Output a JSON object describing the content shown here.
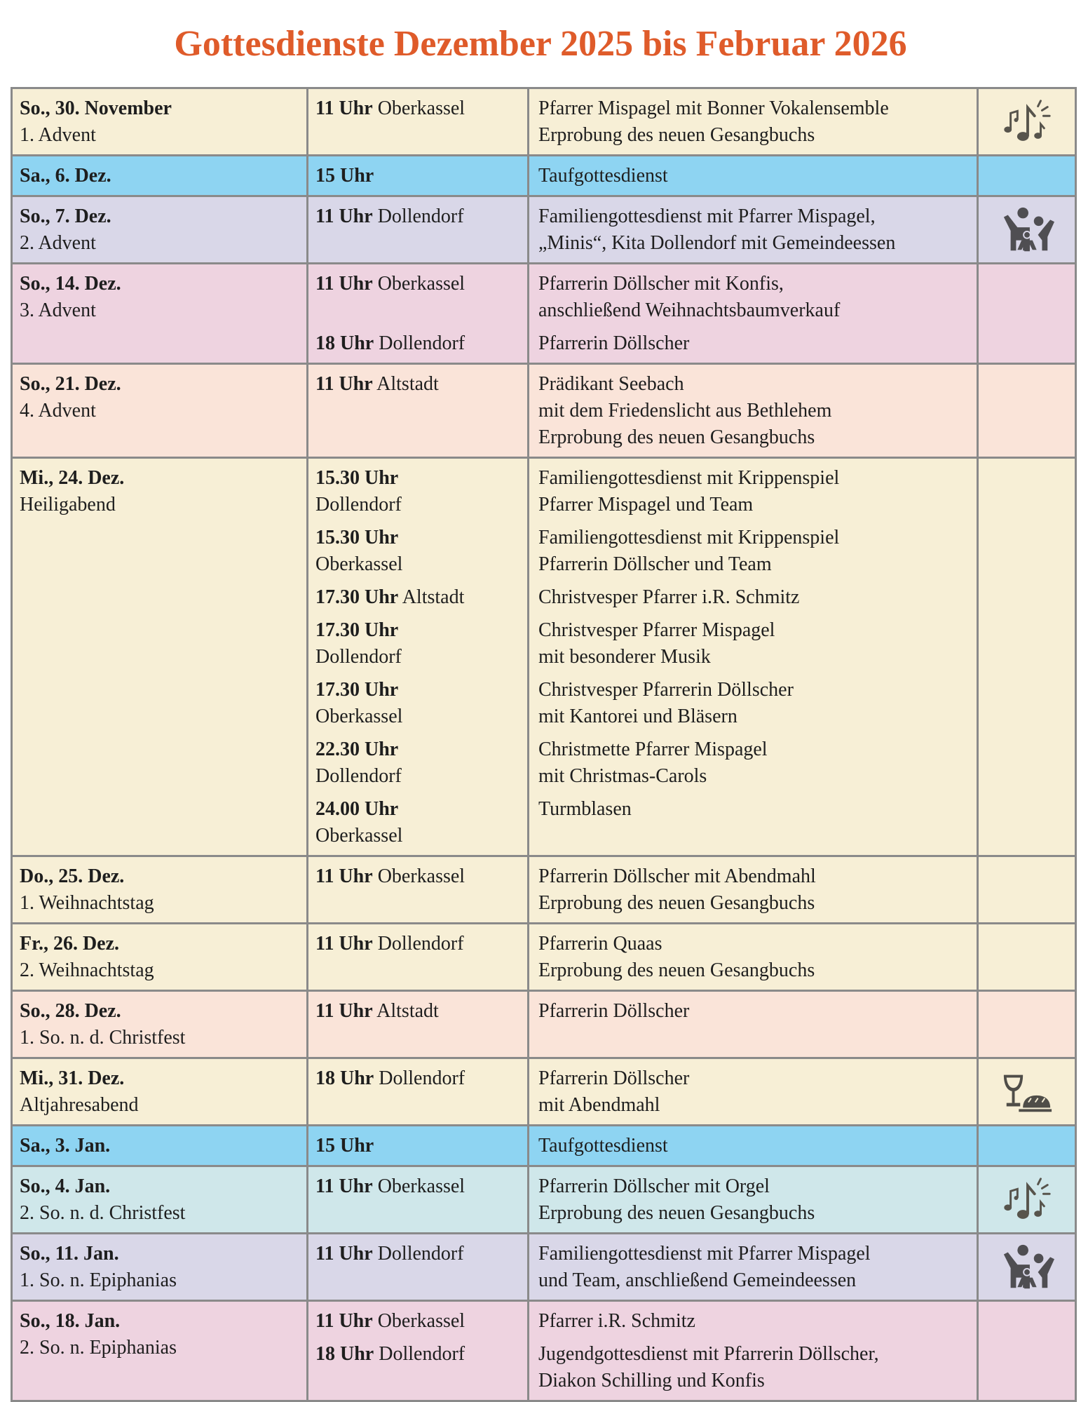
{
  "title": "Gottesdienste Dezember 2025 bis Februar 2026",
  "colors": {
    "cream": "#f7efd6",
    "blue": "#8ed4f2",
    "lavender": "#d9d7e8",
    "pink": "#eed3e0",
    "peach": "#fae4d9",
    "teal": "#cfe7ea",
    "title": "#df5b2a"
  },
  "rows": [
    {
      "day": "So., 30. November",
      "occasion": "1. Advent",
      "color": "cream",
      "icon": "music-notes-icon",
      "entries": [
        {
          "time": "11 Uhr",
          "place": "Oberkassel",
          "desc": [
            "Pfarrer Mispagel mit Bonner Vokalensemble",
            "Erprobung des neuen Gesangbuchs"
          ]
        }
      ]
    },
    {
      "day": "Sa., 6. Dez.",
      "occasion": "",
      "color": "blue",
      "icon": "",
      "entries": [
        {
          "time": "15 Uhr",
          "place": "",
          "desc": [
            "Taufgottesdienst"
          ]
        }
      ]
    },
    {
      "day": "So., 7. Dez.",
      "occasion": "2. Advent",
      "color": "lavender",
      "icon": "family-icon",
      "entries": [
        {
          "time": "11 Uhr",
          "place": "Dollendorf",
          "desc": [
            "Familiengottesdienst mit Pfarrer Mispagel,",
            "„Minis“, Kita Dollendorf mit Gemeindeessen"
          ]
        }
      ]
    },
    {
      "day": "So., 14. Dez.",
      "occasion": "3. Advent",
      "color": "pink",
      "icon": "",
      "entries": [
        {
          "time": "11 Uhr",
          "place": "Oberkassel",
          "desc": [
            "Pfarrerin Döllscher mit Konfis,",
            "anschließend Weihnachtsbaumverkauf"
          ]
        },
        {
          "time": "18 Uhr",
          "place": "Dollendorf",
          "desc": [
            "Pfarrerin Döllscher"
          ]
        }
      ]
    },
    {
      "day": "So., 21. Dez.",
      "occasion": "4. Advent",
      "color": "peach",
      "icon": "",
      "entries": [
        {
          "time": "11 Uhr",
          "place": "Altstadt",
          "desc": [
            "Prädikant Seebach",
            "mit dem Friedenslicht aus Bethlehem",
            "Erprobung des neuen Gesangbuchs"
          ]
        }
      ]
    },
    {
      "day": "Mi., 24. Dez.",
      "occasion": "Heiligabend",
      "color": "cream",
      "icon": "",
      "entries": [
        {
          "time": "15.30 Uhr",
          "place": "Dollendorf",
          "wrap": true,
          "desc": [
            "Familiengottesdienst mit Krippenspiel",
            "Pfarrer Mispagel und Team"
          ]
        },
        {
          "time": "15.30 Uhr",
          "place": "Oberkassel",
          "wrap": true,
          "desc": [
            "Familiengottesdienst mit Krippenspiel",
            "Pfarrerin Döllscher und Team"
          ]
        },
        {
          "time": "17.30 Uhr",
          "place": "Altstadt",
          "desc": [
            "Christvesper Pfarrer i.R. Schmitz"
          ]
        },
        {
          "time": "17.30 Uhr",
          "place": "Dollendorf",
          "wrap": true,
          "desc": [
            "Christvesper Pfarrer Mispagel",
            "mit besonderer Musik"
          ]
        },
        {
          "time": "17.30 Uhr",
          "place": "Oberkassel",
          "wrap": true,
          "desc": [
            "Christvesper Pfarrerin Döllscher",
            "mit Kantorei und Bläsern"
          ]
        },
        {
          "time": "22.30 Uhr",
          "place": "Dollendorf",
          "wrap": true,
          "desc": [
            "Christmette Pfarrer Mispagel",
            "mit Christmas-Carols"
          ]
        },
        {
          "time": "24.00 Uhr",
          "place": "Oberkassel",
          "wrap": true,
          "desc": [
            "Turmblasen"
          ]
        }
      ]
    },
    {
      "day": "Do., 25. Dez.",
      "occasion": "1. Weihnachtstag",
      "color": "cream",
      "icon": "",
      "entries": [
        {
          "time": "11 Uhr",
          "place": "Oberkassel",
          "desc": [
            "Pfarrerin Döllscher mit Abendmahl",
            "Erprobung des neuen Gesangbuchs"
          ]
        }
      ]
    },
    {
      "day": "Fr., 26. Dez.",
      "occasion": "2. Weihnachtstag",
      "color": "cream",
      "icon": "",
      "entries": [
        {
          "time": "11 Uhr",
          "place": "Dollendorf",
          "desc": [
            "Pfarrerin Quaas",
            "Erprobung des neuen Gesangbuchs"
          ]
        }
      ]
    },
    {
      "day": "So., 28. Dez.",
      "occasion": "1. So. n. d. Christfest",
      "color": "peach",
      "icon": "",
      "entries": [
        {
          "time": "11 Uhr",
          "place": "Altstadt",
          "desc": [
            "Pfarrerin Döllscher"
          ]
        }
      ]
    },
    {
      "day": "Mi., 31. Dez.",
      "occasion": "Altjahresabend",
      "color": "cream",
      "icon": "communion-icon",
      "entries": [
        {
          "time": "18 Uhr",
          "place": "Dollendorf",
          "desc": [
            "Pfarrerin Döllscher",
            "mit Abendmahl"
          ]
        }
      ]
    },
    {
      "day": "Sa., 3. Jan.",
      "occasion": "",
      "color": "blue",
      "icon": "",
      "entries": [
        {
          "time": "15 Uhr",
          "place": "",
          "desc": [
            "Taufgottesdienst"
          ]
        }
      ]
    },
    {
      "day": "So., 4. Jan.",
      "occasion": "2. So. n. d. Christfest",
      "color": "teal",
      "icon": "music-notes-icon",
      "entries": [
        {
          "time": "11 Uhr",
          "place": "Oberkassel",
          "desc": [
            "Pfarrerin Döllscher mit Orgel",
            "Erprobung des neuen Gesangbuchs"
          ]
        }
      ]
    },
    {
      "day": "So., 11. Jan.",
      "occasion": "1. So. n. Epiphanias",
      "color": "lavender",
      "icon": "family-icon",
      "entries": [
        {
          "time": "11 Uhr",
          "place": "Dollendorf",
          "desc": [
            "Familiengottesdienst mit Pfarrer Mispagel",
            "und Team, anschließend Gemeindeessen"
          ]
        }
      ]
    },
    {
      "day": "So., 18. Jan.",
      "occasion": "2. So. n. Epiphanias",
      "color": "pink",
      "icon": "",
      "entries": [
        {
          "time": "11 Uhr",
          "place": "Oberkassel",
          "desc": [
            "Pfarrer i.R. Schmitz"
          ]
        },
        {
          "time": "18 Uhr",
          "place": "Dollendorf",
          "desc": [
            "Jugendgottesdienst mit Pfarrerin Döllscher,",
            "Diakon Schilling und Konfis"
          ]
        }
      ]
    }
  ]
}
